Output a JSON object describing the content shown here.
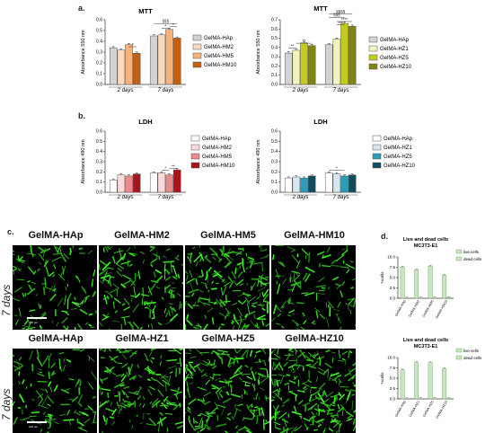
{
  "panel_labels": {
    "a": "a.",
    "b": "b.",
    "c": "c.",
    "d": "d."
  },
  "micro": {
    "row1_titles": [
      "GelMA-HAp",
      "GelMA-HM2",
      "GelMA-HM5",
      "GelMA-HM10"
    ],
    "row2_titles": [
      "GelMA-HAp",
      "GelMA-HZ1",
      "GelMA-HZ5",
      "GelMA-HZ10"
    ],
    "days_label": "7 days",
    "scale_text": "100 µm"
  },
  "chart_data": [
    {
      "id": "mtt_hm",
      "type": "bar",
      "title": "MTT",
      "ylabel": "Absorbance 550 nm",
      "ylim": [
        0,
        0.6
      ],
      "yticks": [
        0.0,
        0.1,
        0.2,
        0.3,
        0.4,
        0.5,
        0.6
      ],
      "categories": [
        "2 days",
        "7 days"
      ],
      "series": [
        {
          "name": "GelMA-HAp",
          "values": [
            0.34,
            0.45
          ],
          "color": "#d3d3d3"
        },
        {
          "name": "GelMA-HM2",
          "values": [
            0.32,
            0.46
          ],
          "color": "#fbd9bd"
        },
        {
          "name": "GelMA-HM5",
          "values": [
            0.37,
            0.51
          ],
          "color": "#f7b27a"
        },
        {
          "name": "GelMA-HM10",
          "values": [
            0.29,
            0.43
          ],
          "color": "#c5600f"
        }
      ],
      "annotations": [
        "*",
        "*",
        "*",
        "§§§"
      ]
    },
    {
      "id": "mtt_hz",
      "type": "bar",
      "title": "MTT",
      "ylabel": "Absorbance 550 nm",
      "ylim": [
        0,
        0.7
      ],
      "yticks": [
        0.0,
        0.1,
        0.2,
        0.3,
        0.4,
        0.5,
        0.6,
        0.7
      ],
      "categories": [
        "2 days",
        "7 days"
      ],
      "series": [
        {
          "name": "GelMA-HAp",
          "values": [
            0.34,
            0.43
          ],
          "color": "#d3d3d3"
        },
        {
          "name": "GelMA-HZ1",
          "values": [
            0.37,
            0.49
          ],
          "color": "#f2f4be"
        },
        {
          "name": "GelMA-HZ5",
          "values": [
            0.45,
            0.66
          ],
          "color": "#c3cc1d"
        },
        {
          "name": "GelMA-HZ10",
          "values": [
            0.42,
            0.63
          ],
          "color": "#7f8510"
        }
      ],
      "annotations": [
        "**",
        "**",
        "***",
        "****",
        "§§§",
        "§§§§"
      ]
    },
    {
      "id": "ldh_hm",
      "type": "bar",
      "title": "LDH",
      "ylabel": "Absorbance 490 nm",
      "ylim": [
        0,
        0.6
      ],
      "yticks": [
        0.0,
        0.1,
        0.2,
        0.3,
        0.4,
        0.5,
        0.6
      ],
      "categories": [
        "2 days",
        "7 days"
      ],
      "series": [
        {
          "name": "GelMA-HAp",
          "values": [
            0.12,
            0.19
          ],
          "color": "#ffffff"
        },
        {
          "name": "GelMA-HM2",
          "values": [
            0.17,
            0.19
          ],
          "color": "#fadada"
        },
        {
          "name": "GelMA-HM5",
          "values": [
            0.16,
            0.17
          ],
          "color": "#ec8a8a"
        },
        {
          "name": "GelMA-HM10",
          "values": [
            0.18,
            0.22
          ],
          "color": "#a8141d"
        }
      ],
      "annotations": [
        "*",
        "**"
      ]
    },
    {
      "id": "ldh_hz",
      "type": "bar",
      "title": "LDH",
      "ylabel": "Absorbance 490 nm",
      "ylim": [
        0,
        0.6
      ],
      "yticks": [
        0.0,
        0.1,
        0.2,
        0.3,
        0.4,
        0.5,
        0.6
      ],
      "categories": [
        "2 days",
        "7 days"
      ],
      "series": [
        {
          "name": "GelMA-HAp",
          "values": [
            0.14,
            0.19
          ],
          "color": "#ffffff"
        },
        {
          "name": "GelMA-HZ1",
          "values": [
            0.15,
            0.18
          ],
          "color": "#d8e6ef"
        },
        {
          "name": "GelMA-HZ5",
          "values": [
            0.14,
            0.16
          ],
          "color": "#2a9db8"
        },
        {
          "name": "GelMA-HZ10",
          "values": [
            0.16,
            0.17
          ],
          "color": "#0f4d5e"
        }
      ],
      "annotations": [
        "*"
      ]
    },
    {
      "id": "ld_hm",
      "type": "bar",
      "title": "Live and dead cells",
      "subtitle": "MC3T3-E1",
      "ylabel": "%cells",
      "ylim": [
        0,
        10
      ],
      "yticks": [
        0.0,
        2.5,
        5.0,
        7.5,
        10.0
      ],
      "categories": [
        "GelMA-HAp",
        "GelMA-HM2",
        "GelMA-HM5",
        "GelMA-HM10"
      ],
      "series": [
        {
          "name": "live cells",
          "values": [
            7.6,
            6.9,
            7.8,
            5.6
          ],
          "color": "#c9e6c0"
        },
        {
          "name": "dead cells",
          "values": [
            0.1,
            0.1,
            0.1,
            0.2
          ],
          "color": "#c9e6c0"
        }
      ]
    },
    {
      "id": "ld_hz",
      "type": "bar",
      "title": "Live and dead cells",
      "subtitle": "MC3T3-E1",
      "ylabel": "%cells",
      "ylim": [
        0,
        10
      ],
      "yticks": [
        0.0,
        2.5,
        5.0,
        7.5,
        10.0
      ],
      "categories": [
        "GelMA-HAp",
        "GelMA-HZ1",
        "GelMA-HZ5",
        "GelMA-HZ10"
      ],
      "series": [
        {
          "name": "live cells",
          "values": [
            7.0,
            8.8,
            8.8,
            7.3
          ],
          "color": "#c9e6c0"
        },
        {
          "name": "dead cells",
          "values": [
            0.1,
            0.1,
            0.1,
            0.1
          ],
          "color": "#c9e6c0"
        }
      ]
    }
  ]
}
